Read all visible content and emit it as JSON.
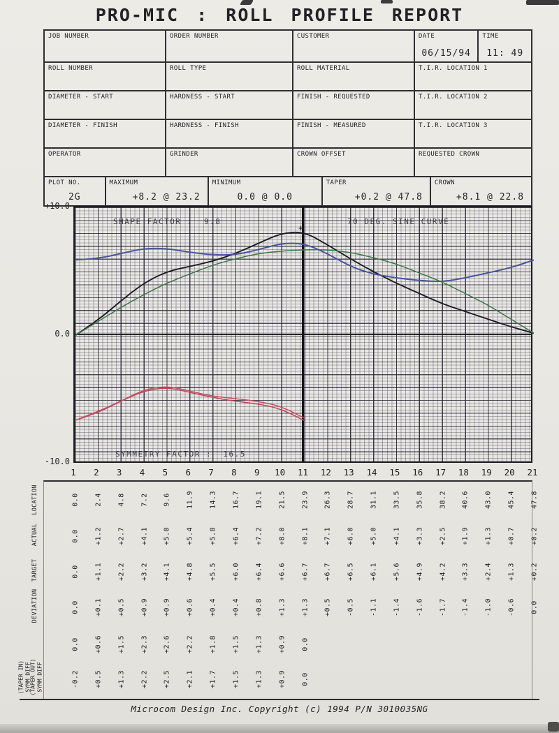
{
  "title": "PRO-MIC : ROLL PROFILE REPORT",
  "form": {
    "rows": [
      {
        "cells": [
          {
            "label": "JOB NUMBER",
            "value": ""
          },
          {
            "label": "ORDER NUMBER",
            "value": ""
          },
          {
            "label": "CUSTOMER",
            "value": ""
          },
          {
            "label": "DATE",
            "value": "06/15/94"
          },
          {
            "label": "TIME",
            "value": "11: 49"
          }
        ]
      },
      {
        "cells": [
          {
            "label": "ROLL NUMBER"
          },
          {
            "label": "ROLL TYPE"
          },
          {
            "label": "ROLL MATERIAL"
          },
          {
            "label": "T.I.R. LOCATION 1"
          }
        ]
      },
      {
        "cells": [
          {
            "label": "DIAMETER - START"
          },
          {
            "label": "HARDNESS - START"
          },
          {
            "label": "FINISH - REQUESTED"
          },
          {
            "label": "T.I.R. LOCATION 2"
          }
        ]
      },
      {
        "cells": [
          {
            "label": "DIAMETER - FINISH"
          },
          {
            "label": "HARDNESS - FINISH"
          },
          {
            "label": "FINISH - MEASURED"
          },
          {
            "label": "T.I.R. LOCATION 3"
          }
        ]
      },
      {
        "cells": [
          {
            "label": "OPERATOR"
          },
          {
            "label": "GRINDER"
          },
          {
            "label": "CROWN OFFSET"
          },
          {
            "label": "REQUESTED CROWN"
          }
        ]
      }
    ]
  },
  "stats": {
    "cells": [
      {
        "label": "PLOT NO.",
        "value": "2G"
      },
      {
        "label": "MAXIMUM",
        "value": "+8.2 @ 23.2"
      },
      {
        "label": "MINIMUM",
        "value": "0.0 @ 0.0"
      },
      {
        "label": "TAPER",
        "value": "+0.2 @ 47.8"
      },
      {
        "label": "CROWN",
        "value": "+8.1 @ 22.8"
      }
    ]
  },
  "chart_data": {
    "type": "line",
    "annotations": {
      "shape_factor": "SHAPE FACTOR :  9.8",
      "curve_type": "70 DEG. SINE CURVE",
      "symmetry_factor": "SYMMETRY FACTOR :  16.5"
    },
    "y_tick_labels": [
      "+10.0",
      "0.0",
      "-10.0"
    ],
    "ylim": [
      -10,
      10
    ],
    "x_ticks": [
      1,
      2,
      3,
      4,
      5,
      6,
      7,
      8,
      9,
      10,
      11,
      12,
      13,
      14,
      15,
      16,
      17,
      18,
      19,
      20,
      21
    ],
    "grid": true,
    "peak_marker": {
      "x": 10.85,
      "y": 8.4,
      "symbol": "+"
    },
    "series": [
      {
        "name": "actual",
        "color": "#1c1c24",
        "width": 1.9,
        "values": [
          0.0,
          1.2,
          2.7,
          4.1,
          5.0,
          5.4,
          5.8,
          6.4,
          7.2,
          8.0,
          8.1,
          7.1,
          6.0,
          5.0,
          4.1,
          3.3,
          2.5,
          1.9,
          1.3,
          0.7,
          0.2
        ]
      },
      {
        "name": "target",
        "color": "#41764c",
        "width": 1.5,
        "values": [
          0.0,
          1.1,
          2.2,
          3.2,
          4.1,
          4.8,
          5.5,
          6.0,
          6.4,
          6.6,
          6.7,
          6.7,
          6.5,
          6.1,
          5.6,
          4.9,
          4.2,
          3.3,
          2.4,
          1.3,
          0.2
        ]
      },
      {
        "name": "deviation-offset",
        "color": "#4a569b",
        "width": 2.0,
        "values": [
          5.9,
          6.0,
          6.4,
          6.8,
          6.8,
          6.5,
          6.3,
          6.3,
          6.7,
          7.2,
          7.2,
          6.4,
          5.4,
          4.8,
          4.5,
          4.3,
          4.2,
          4.5,
          4.9,
          5.3,
          5.9
        ]
      },
      {
        "name": "symm-diff-taper-out",
        "color": "#bf4458",
        "width": 1.5,
        "values": [
          -6.6,
          -6.0,
          -5.1,
          -4.3,
          -4.0,
          -4.4,
          -4.8,
          -5.1,
          -5.3,
          -5.7,
          -6.6,
          null,
          null,
          null,
          null,
          null,
          null,
          null,
          null,
          null,
          null
        ]
      },
      {
        "name": "symm-diff-taper-in",
        "color": "#c44f62",
        "width": 1.5,
        "values": [
          -6.6,
          -5.9,
          -5.1,
          -4.2,
          -3.9,
          -4.3,
          -4.7,
          -4.9,
          -5.1,
          -5.5,
          -6.4,
          null,
          null,
          null,
          null,
          null,
          null,
          null,
          null,
          null,
          null
        ]
      }
    ]
  },
  "table": {
    "rows": [
      {
        "label": "LOCATION",
        "values": [
          "0.0",
          "2.4",
          "4.8",
          "7.2",
          "9.6",
          "11.9",
          "14.3",
          "16.7",
          "19.1",
          "21.5",
          "23.9",
          "26.3",
          "28.7",
          "31.1",
          "33.5",
          "35.8",
          "38.2",
          "40.6",
          "43.0",
          "45.4",
          "47.8"
        ]
      },
      {
        "label": "ACTUAL",
        "values": [
          "0.0",
          "+1.2",
          "+2.7",
          "+4.1",
          "+5.0",
          "+5.4",
          "+5.8",
          "+6.4",
          "+7.2",
          "+8.0",
          "+8.1",
          "+7.1",
          "+6.0",
          "+5.0",
          "+4.1",
          "+3.3",
          "+2.5",
          "+1.9",
          "+1.3",
          "+0.7",
          "+0.2"
        ]
      },
      {
        "label": "TARGET",
        "values": [
          "0.0",
          "+1.1",
          "+2.2",
          "+3.2",
          "+4.1",
          "+4.8",
          "+5.5",
          "+6.0",
          "+6.4",
          "+6.6",
          "+6.7",
          "+6.7",
          "+6.5",
          "+6.1",
          "+5.6",
          "+4.9",
          "+4.2",
          "+3.3",
          "+2.4",
          "+1.3",
          "+0.2"
        ]
      },
      {
        "label": "DEVIATION",
        "values": [
          "0.0",
          "+0.1",
          "+0.5",
          "+0.9",
          "+0.9",
          "+0.6",
          "+0.4",
          "+0.4",
          "+0.8",
          "+1.3",
          "+1.3",
          "+0.5",
          "-0.5",
          "-1.1",
          "-1.4",
          "-1.6",
          "-1.7",
          "-1.4",
          "-1.0",
          "-0.6",
          "0.0"
        ]
      },
      {
        "label": "(TAPER OUT) SYMM DIFF",
        "label_lines": [
          "(TAPER OUT)",
          "SYMM DIFF"
        ],
        "values": [
          "0.0",
          "+0.6",
          "+1.5",
          "+2.3",
          "+2.6",
          "+2.2",
          "+1.8",
          "+1.5",
          "+1.3",
          "+0.9",
          "0.0",
          "",
          "",
          "",
          "",
          "",
          "",
          "",
          "",
          "",
          ""
        ]
      },
      {
        "label": "(TAPER IN) SYMM DIFF",
        "label_lines": [
          "(TAPER IN)",
          "SYMM DIFF"
        ],
        "values": [
          "-0.2",
          "+0.5",
          "+1.3",
          "+2.2",
          "+2.5",
          "+2.1",
          "+1.7",
          "+1.5",
          "+1.3",
          "+0.9",
          "0.0",
          "",
          "",
          "",
          "",
          "",
          "",
          "",
          "",
          "",
          ""
        ]
      }
    ]
  },
  "footer": "Microcom Design Inc. Copyright (c) 1994 P/N 3010035NG"
}
